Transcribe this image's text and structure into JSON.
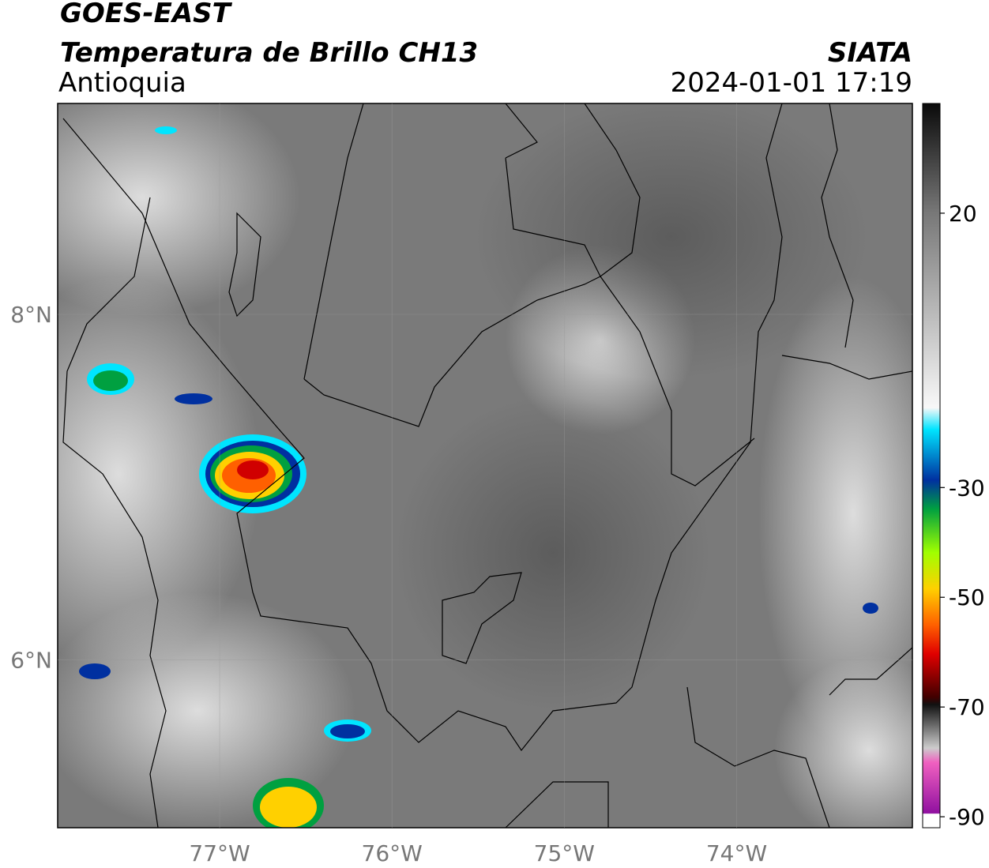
{
  "title": "GOES-EAST",
  "subtitle": "Temperatura de Brillo CH13",
  "region": "Antioquia",
  "source": "SIATA",
  "timestamp": "2024-01-01 17:19",
  "map": {
    "xlim": [
      -77.94,
      -72.98
    ],
    "ylim": [
      5.03,
      9.22
    ],
    "xticks": [
      {
        "value": -77,
        "label": "77°W"
      },
      {
        "value": -76,
        "label": "76°W"
      },
      {
        "value": -75,
        "label": "75°W"
      },
      {
        "value": -74,
        "label": "74°W"
      }
    ],
    "yticks": [
      {
        "value": 6,
        "label": "6°N"
      },
      {
        "value": 8,
        "label": "8°N"
      }
    ]
  },
  "colorbar": {
    "lim": [
      -92,
      40
    ],
    "ticks": [
      20,
      -30,
      -50,
      -70,
      -90
    ]
  }
}
